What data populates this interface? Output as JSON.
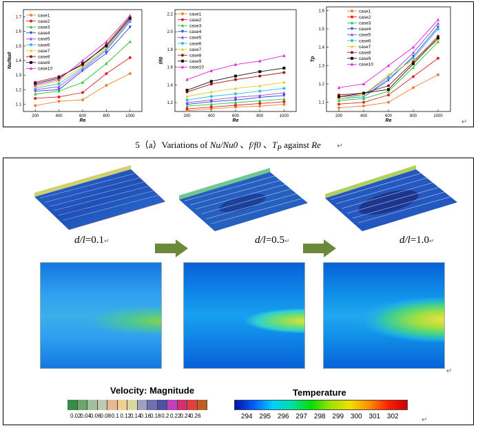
{
  "caption": {
    "prefix": "5（a）Variations of ",
    "v1": "Nu/Nu0",
    "sep1": " 、",
    "v2": "f/f0",
    "sep2": " 、",
    "v3_main": "T",
    "v3_sub": "P",
    "mid": " against ",
    "v4": "Re"
  },
  "return_mark": "↵",
  "chart_data": [
    {
      "type": "line",
      "xlabel": "Re",
      "ylabel": "Nu/Nu0",
      "x": [
        200,
        400,
        600,
        800,
        1000
      ],
      "xticks": [
        "200",
        "400",
        "600",
        "800",
        "1000"
      ],
      "ylim": [
        1.05,
        1.75
      ],
      "yticks": [
        1.1,
        1.2,
        1.3,
        1.4,
        1.5,
        1.6,
        1.7
      ],
      "legend_position": "top-left",
      "series": [
        {
          "name": "case1",
          "color": "#f08030",
          "values": [
            1.09,
            1.12,
            1.13,
            1.23,
            1.31
          ]
        },
        {
          "name": "case2",
          "color": "#e02020",
          "values": [
            1.14,
            1.15,
            1.18,
            1.31,
            1.42
          ]
        },
        {
          "name": "case3",
          "color": "#30c030",
          "values": [
            1.17,
            1.19,
            1.25,
            1.38,
            1.53
          ]
        },
        {
          "name": "case4",
          "color": "#2040e0",
          "values": [
            1.19,
            1.2,
            1.33,
            1.45,
            1.63
          ]
        },
        {
          "name": "case5",
          "color": "#a040e0",
          "values": [
            1.2,
            1.22,
            1.34,
            1.47,
            1.67
          ]
        },
        {
          "name": "case6",
          "color": "#20c0e0",
          "values": [
            1.21,
            1.24,
            1.35,
            1.48,
            1.68
          ]
        },
        {
          "name": "case7",
          "color": "#e0d020",
          "values": [
            1.22,
            1.26,
            1.36,
            1.49,
            1.69
          ]
        },
        {
          "name": "case8",
          "color": "#a01010",
          "values": [
            1.25,
            1.29,
            1.37,
            1.51,
            1.7
          ]
        },
        {
          "name": "case9",
          "color": "#101010",
          "values": [
            1.24,
            1.28,
            1.38,
            1.5,
            1.69
          ]
        },
        {
          "name": "case10",
          "color": "#e020e0",
          "values": [
            1.23,
            1.27,
            1.4,
            1.53,
            1.71
          ]
        }
      ]
    },
    {
      "type": "line",
      "xlabel": "Re",
      "ylabel": "f/f0",
      "x": [
        200,
        400,
        600,
        800,
        1000
      ],
      "xticks": [
        "200",
        "400",
        "600",
        "800",
        "1000"
      ],
      "ylim": [
        1.1,
        2.25
      ],
      "yticks": [
        1.2,
        1.4,
        1.6,
        1.8,
        2.0,
        2.2
      ],
      "legend_position": "top-left",
      "series": [
        {
          "name": "case1",
          "color": "#f08030",
          "values": [
            1.11,
            1.13,
            1.15,
            1.16,
            1.18
          ]
        },
        {
          "name": "case2",
          "color": "#e02020",
          "values": [
            1.13,
            1.15,
            1.17,
            1.19,
            1.21
          ]
        },
        {
          "name": "case3",
          "color": "#30c030",
          "values": [
            1.16,
            1.18,
            1.2,
            1.22,
            1.24
          ]
        },
        {
          "name": "case4",
          "color": "#2040e0",
          "values": [
            1.18,
            1.21,
            1.23,
            1.26,
            1.28
          ]
        },
        {
          "name": "case5",
          "color": "#a040e0",
          "values": [
            1.2,
            1.23,
            1.26,
            1.28,
            1.31
          ]
        },
        {
          "name": "case6",
          "color": "#20c0e0",
          "values": [
            1.23,
            1.27,
            1.3,
            1.33,
            1.36
          ]
        },
        {
          "name": "case7",
          "color": "#e0d020",
          "values": [
            1.27,
            1.32,
            1.36,
            1.39,
            1.43
          ]
        },
        {
          "name": "case8",
          "color": "#a01010",
          "values": [
            1.32,
            1.41,
            1.46,
            1.5,
            1.54
          ]
        },
        {
          "name": "case9",
          "color": "#101010",
          "values": [
            1.34,
            1.44,
            1.5,
            1.55,
            1.59
          ]
        },
        {
          "name": "case10",
          "color": "#e020e0",
          "values": [
            1.46,
            1.56,
            1.63,
            1.67,
            1.73
          ]
        }
      ]
    },
    {
      "type": "line",
      "xlabel": "Re",
      "ylabel": "Tp",
      "x": [
        200,
        400,
        600,
        800,
        1000
      ],
      "xticks": [
        "200",
        "400",
        "600",
        "800",
        "1000"
      ],
      "ylim": [
        1.05,
        1.62
      ],
      "yticks": [
        1.1,
        1.2,
        1.3,
        1.4,
        1.5,
        1.6
      ],
      "legend_position": "top-right",
      "series": [
        {
          "name": "case1",
          "color": "#f08030",
          "values": [
            1.07,
            1.08,
            1.1,
            1.18,
            1.25
          ]
        },
        {
          "name": "case2",
          "color": "#e02020",
          "values": [
            1.09,
            1.1,
            1.14,
            1.24,
            1.34
          ]
        },
        {
          "name": "case3",
          "color": "#30c030",
          "values": [
            1.11,
            1.12,
            1.16,
            1.29,
            1.43
          ]
        },
        {
          "name": "case4",
          "color": "#2040e0",
          "values": [
            1.12,
            1.13,
            1.22,
            1.35,
            1.51
          ]
        },
        {
          "name": "case5",
          "color": "#a040e0",
          "values": [
            1.13,
            1.14,
            1.24,
            1.37,
            1.53
          ]
        },
        {
          "name": "case6",
          "color": "#20c0e0",
          "values": [
            1.12,
            1.13,
            1.23,
            1.34,
            1.5
          ]
        },
        {
          "name": "case7",
          "color": "#e0d020",
          "values": [
            1.12,
            1.14,
            1.25,
            1.33,
            1.44
          ]
        },
        {
          "name": "case8",
          "color": "#a01010",
          "values": [
            1.14,
            1.15,
            1.19,
            1.32,
            1.46
          ]
        },
        {
          "name": "case9",
          "color": "#101010",
          "values": [
            1.13,
            1.15,
            1.17,
            1.31,
            1.45
          ]
        },
        {
          "name": "case10",
          "color": "#e020e0",
          "values": [
            1.18,
            1.2,
            1.3,
            1.4,
            1.55
          ]
        }
      ]
    }
  ],
  "ratios": [
    {
      "var": "d/l",
      "eq": "=0.1"
    },
    {
      "var": "d/l",
      "eq": "=0.5"
    },
    {
      "var": "d/l",
      "eq": "=1.0"
    }
  ],
  "velocity_legend": {
    "title": "Velocity: Magnitude",
    "ticks": [
      "0.02",
      "0.04",
      "0.06",
      "0.08",
      "0.1",
      "0.12",
      "0.14",
      "0.16",
      "0.18",
      "0.2",
      "0.22",
      "0.24",
      "0.26"
    ],
    "colors": [
      "#3a8a4a",
      "#6aa86a",
      "#a0c0a0",
      "#c0c8b0",
      "#e8b890",
      "#f0d090",
      "#d8d8a0",
      "#a0a0c0",
      "#7070b0",
      "#5050a0",
      "#c040c0",
      "#d03070",
      "#e04040",
      "#c06020"
    ]
  },
  "temperature_legend": {
    "title": "Temperature",
    "ticks": [
      "294",
      "295",
      "296",
      "297",
      "298",
      "299",
      "300",
      "301",
      "302"
    ]
  }
}
